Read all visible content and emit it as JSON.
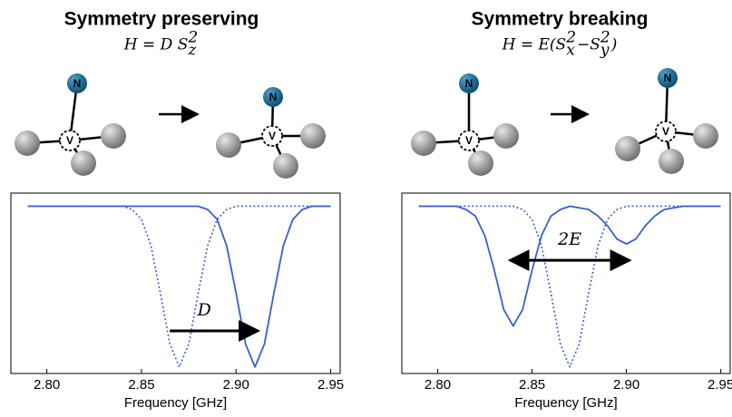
{
  "panels": [
    {
      "title": "Symmetry preserving",
      "formula": [
        {
          "text": "H = D S",
          "pos": "base"
        },
        {
          "text": "z",
          "pos": "sub"
        },
        {
          "text": "2",
          "pos": "sup"
        }
      ]
    },
    {
      "title": "Symmetry breaking",
      "formula": [
        {
          "text": "H = E(S",
          "pos": "base"
        },
        {
          "text": "x",
          "pos": "sub"
        },
        {
          "text": "2",
          "pos": "sup"
        },
        {
          "text": "−S",
          "pos": "base"
        },
        {
          "text": "y",
          "pos": "sub"
        },
        {
          "text": "2",
          "pos": "sup"
        },
        {
          "text": ")",
          "pos": "base"
        }
      ]
    }
  ],
  "atom_labels": {
    "top": "N",
    "center": "V"
  },
  "chart_data": [
    {
      "type": "line",
      "xlabel": "Frequency [GHz]",
      "x": [
        2.79,
        2.795,
        2.8,
        2.805,
        2.81,
        2.815,
        2.82,
        2.825,
        2.83,
        2.835,
        2.84,
        2.845,
        2.85,
        2.855,
        2.86,
        2.865,
        2.87,
        2.875,
        2.88,
        2.885,
        2.89,
        2.895,
        2.9,
        2.905,
        2.91,
        2.915,
        2.92,
        2.925,
        2.93,
        2.935,
        2.94,
        2.945,
        2.95
      ],
      "series": [
        {
          "color": "#3a5fcd",
          "style": "dotted",
          "values": [
            1,
            1,
            1,
            1,
            1,
            1,
            1,
            1,
            1,
            1,
            1,
            0.98,
            0.92,
            0.76,
            0.47,
            0.16,
            0.02,
            0.16,
            0.47,
            0.76,
            0.92,
            0.98,
            1,
            1,
            1,
            1,
            1,
            1,
            1,
            1,
            1,
            1,
            1
          ]
        },
        {
          "color": "#3a5fcd",
          "style": "solid",
          "values": [
            1,
            1,
            1,
            1,
            1,
            1,
            1,
            1,
            1,
            1,
            1,
            1,
            1,
            1,
            1,
            1,
            1,
            1,
            1,
            0.98,
            0.92,
            0.76,
            0.47,
            0.16,
            0.02,
            0.16,
            0.47,
            0.76,
            0.92,
            0.98,
            1,
            1,
            1
          ]
        }
      ],
      "xlim": [
        2.781,
        2.955
      ],
      "xticks": [
        {
          "value": 2.8,
          "label": "2.80"
        },
        {
          "value": 2.85,
          "label": "2.85"
        },
        {
          "value": 2.9,
          "label": "2.90"
        },
        {
          "value": 2.95,
          "label": "2.95"
        }
      ],
      "ylim": [
        -0.02,
        1.08
      ],
      "annotations": [
        {
          "text": "D",
          "x": [
            2.865,
            2.91
          ],
          "y": 0.24
        }
      ]
    },
    {
      "type": "line",
      "xlabel": "Frequency [GHz]",
      "x": [
        2.79,
        2.795,
        2.8,
        2.805,
        2.81,
        2.815,
        2.82,
        2.825,
        2.83,
        2.835,
        2.84,
        2.845,
        2.85,
        2.855,
        2.86,
        2.865,
        2.87,
        2.875,
        2.88,
        2.885,
        2.89,
        2.895,
        2.9,
        2.905,
        2.91,
        2.915,
        2.92,
        2.925,
        2.93,
        2.935,
        2.94,
        2.945,
        2.95
      ],
      "series": [
        {
          "color": "#3a5fcd",
          "style": "dotted",
          "values": [
            1,
            1,
            1,
            1,
            1,
            1,
            1,
            1,
            1,
            1,
            1,
            0.98,
            0.92,
            0.76,
            0.47,
            0.16,
            0.02,
            0.16,
            0.47,
            0.76,
            0.92,
            0.98,
            1,
            1,
            1,
            1,
            1,
            1,
            1,
            1,
            1,
            1,
            1
          ]
        },
        {
          "color": "#3a5fcd",
          "style": "solid",
          "values": [
            1,
            1,
            1,
            1,
            1,
            0.98,
            0.94,
            0.82,
            0.61,
            0.37,
            0.27,
            0.37,
            0.61,
            0.82,
            0.94,
            0.98,
            1,
            0.99,
            0.98,
            0.94,
            0.88,
            0.8,
            0.77,
            0.8,
            0.88,
            0.94,
            0.98,
            0.99,
            1,
            1,
            1,
            1,
            1
          ]
        }
      ],
      "xlim": [
        2.781,
        2.955
      ],
      "xticks": [
        {
          "value": 2.8,
          "label": "2.80"
        },
        {
          "value": 2.85,
          "label": "2.85"
        },
        {
          "value": 2.9,
          "label": "2.90"
        },
        {
          "value": 2.95,
          "label": "2.95"
        }
      ],
      "ylim": [
        -0.02,
        1.08
      ],
      "annotations": [
        {
          "text": "2E",
          "x": [
            2.84,
            2.9
          ],
          "y": 0.67
        }
      ]
    }
  ]
}
